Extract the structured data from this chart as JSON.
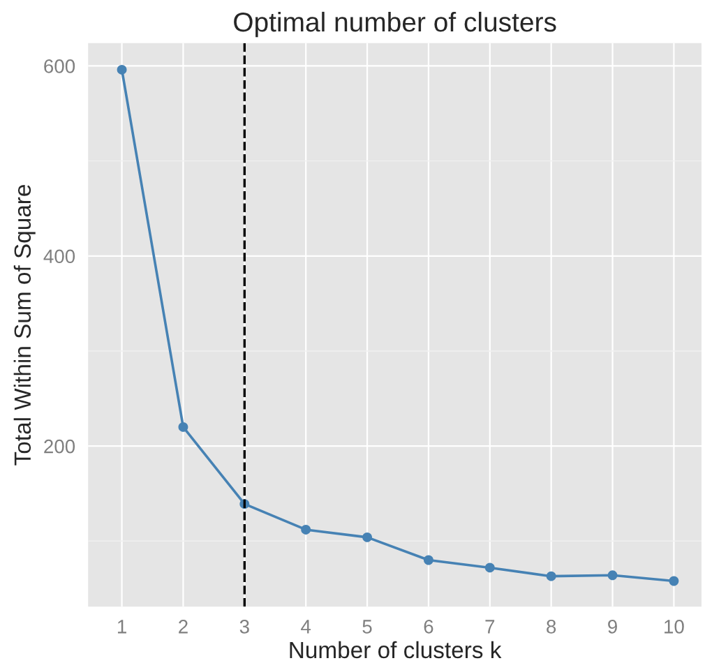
{
  "chart_data": {
    "type": "line",
    "title": "Optimal number of clusters",
    "xlabel": "Number of clusters k",
    "ylabel": "Total Within Sum of Square",
    "x": [
      1,
      2,
      3,
      4,
      5,
      6,
      7,
      8,
      9,
      10
    ],
    "series": [
      {
        "color": "#4682b4",
        "values": [
          596,
          220,
          139,
          112,
          104,
          80,
          72,
          63,
          64,
          58
        ]
      }
    ],
    "xlim": [
      0.45,
      10.45
    ],
    "ylim": [
      31,
      624
    ],
    "xticks": [
      1,
      2,
      3,
      4,
      5,
      6,
      7,
      8,
      9,
      10
    ],
    "yticks": [
      200,
      400,
      600
    ],
    "ref_lines": [
      {
        "axis": "x",
        "value": 3,
        "color": "#000000",
        "line_style": "dashed"
      }
    ],
    "grid": true,
    "marker": "circle",
    "line_style": "solid"
  }
}
